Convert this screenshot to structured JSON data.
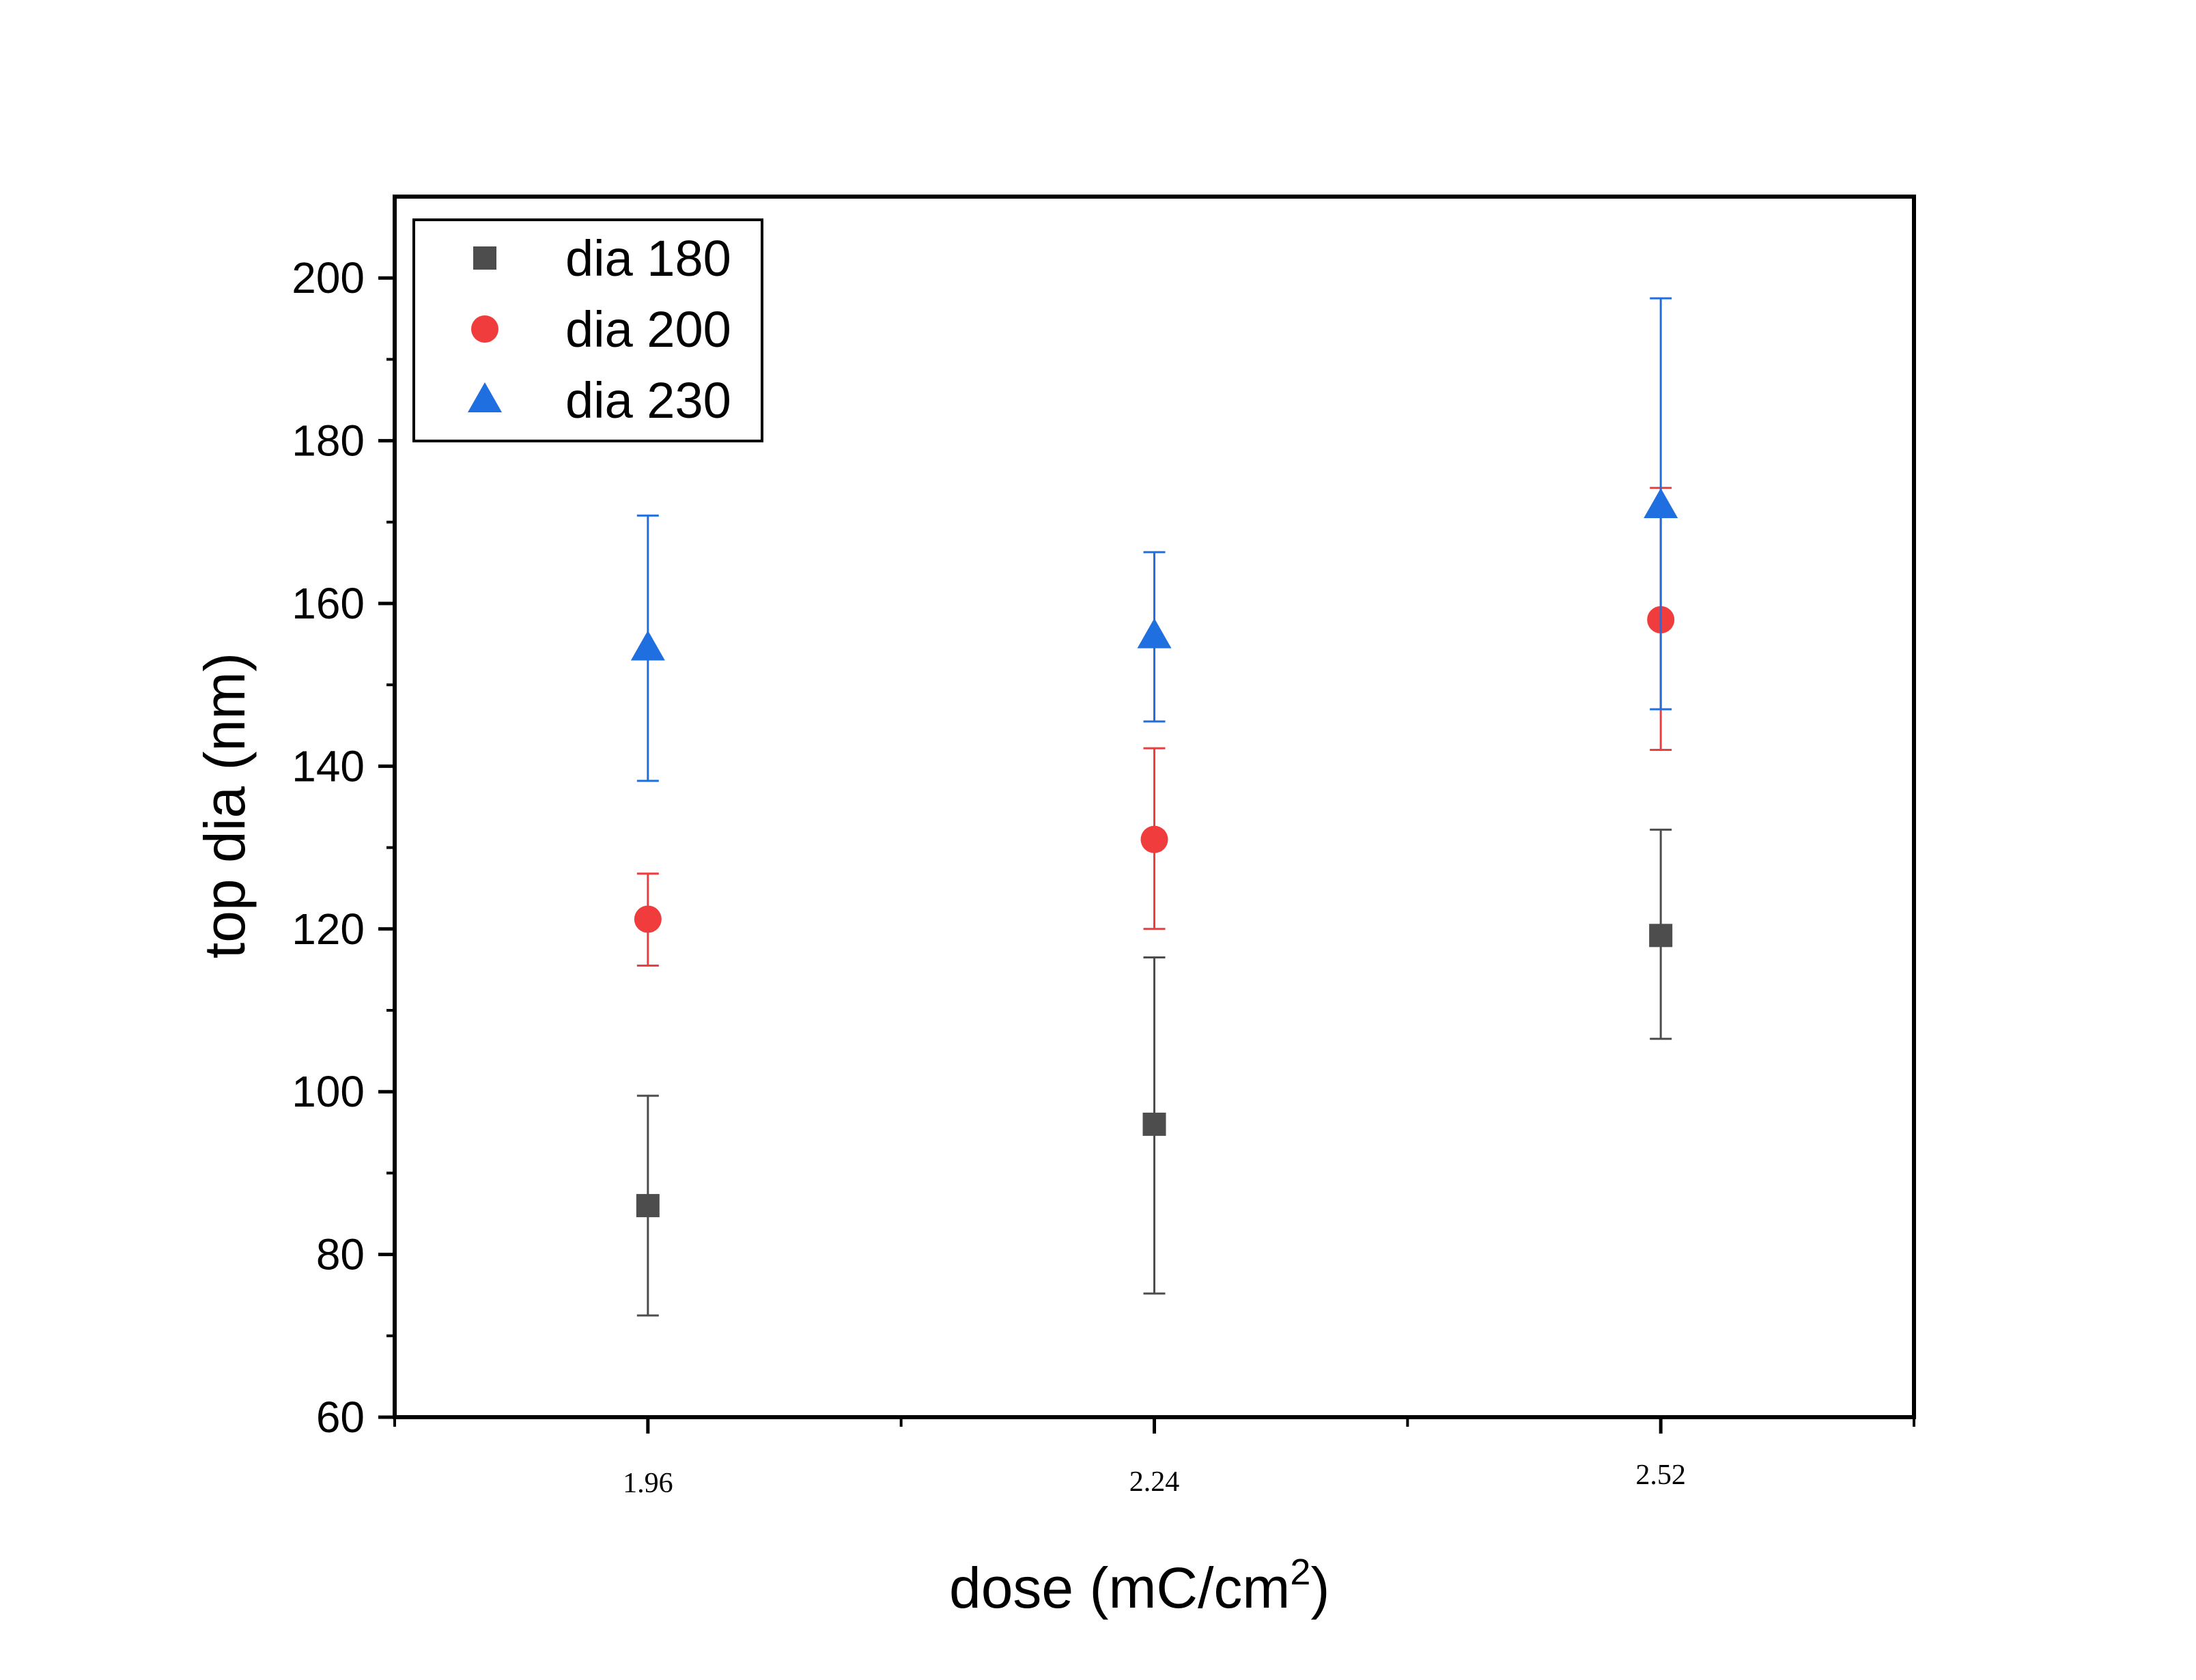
{
  "chart_data": {
    "type": "scatter",
    "title": "",
    "xlabel": "dose (mC/cm",
    "xlabel_sup": "2",
    "xlabel_close": ")",
    "ylabel": "top dia (nm)",
    "x_tick_labels": [
      "1.96",
      "2.24",
      "2.52"
    ],
    "xlim": [
      1.82,
      2.66
    ],
    "ylim": [
      60,
      210
    ],
    "y_ticks": [
      60,
      80,
      100,
      120,
      140,
      160,
      180,
      200
    ],
    "y_tick_labels": [
      "60",
      "80",
      "100",
      "120",
      "140",
      "160",
      "180",
      "200"
    ],
    "grid": false,
    "legend_position": "top-left",
    "series": [
      {
        "name": "dia 180",
        "marker": "square",
        "color": "#4d4d4d",
        "x": [
          1.96,
          2.24,
          2.52
        ],
        "y": [
          86,
          96,
          119.2
        ],
        "err_low": [
          72.5,
          75.2,
          106.5
        ],
        "err_high": [
          99.5,
          116.5,
          132.2
        ]
      },
      {
        "name": "dia 200",
        "marker": "circle",
        "color": "#f03c3c",
        "x": [
          1.96,
          2.24,
          2.52
        ],
        "y": [
          121.2,
          131,
          158
        ],
        "err_low": [
          115.5,
          120,
          142
        ],
        "err_high": [
          126.8,
          142.2,
          174.2
        ]
      },
      {
        "name": "dia 230",
        "marker": "triangle",
        "color": "#1f6fe0",
        "x": [
          1.96,
          2.24,
          2.52
        ],
        "y": [
          154.5,
          156,
          172
        ],
        "err_low": [
          138.2,
          145.5,
          147
        ],
        "err_high": [
          170.8,
          166.3,
          197.5
        ]
      }
    ]
  }
}
